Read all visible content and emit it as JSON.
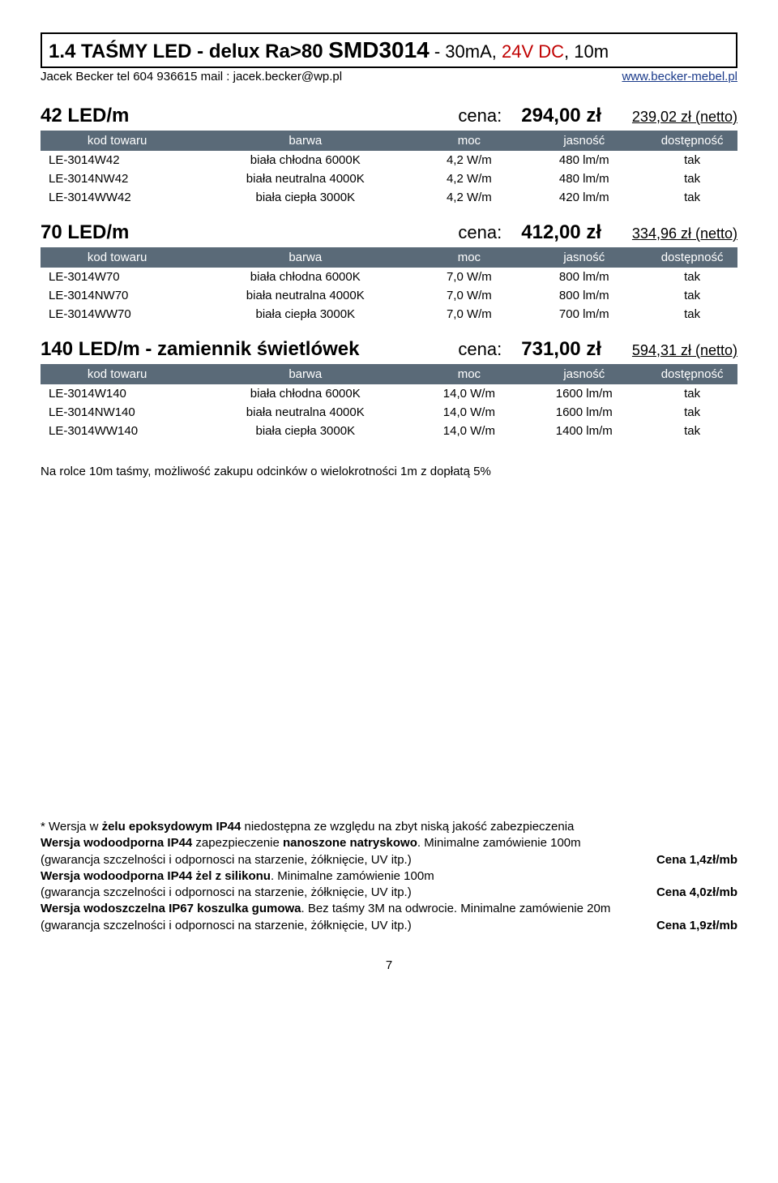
{
  "title": {
    "p1": "1.4 TAŚMY LED - delux Ra>80 ",
    "p2": "SMD3014",
    "p3": " - 30mA, ",
    "p4": "24V DC",
    "p5": ", 10m"
  },
  "contact": {
    "left": "Jacek Becker  tel 604 936615 mail : jacek.becker@wp.pl",
    "right": "www.becker-mebel.pl"
  },
  "columns": [
    "kod towaru",
    "barwa",
    "moc",
    "jasność",
    "dostępność"
  ],
  "sections": [
    {
      "label": "42 LED/m",
      "cena_label": "cena:",
      "price": "294,00 zł",
      "netto": "239,02 zł (netto)",
      "rows": [
        [
          "LE-3014W42",
          "biała chłodna 6000K",
          "4,2 W/m",
          "480 lm/m",
          "tak"
        ],
        [
          "LE-3014NW42",
          "biała neutralna 4000K",
          "4,2 W/m",
          "480 lm/m",
          "tak"
        ],
        [
          "LE-3014WW42",
          "biała ciepła 3000K",
          "4,2 W/m",
          "420 lm/m",
          "tak"
        ]
      ]
    },
    {
      "label": "70 LED/m",
      "cena_label": "cena:",
      "price": "412,00 zł",
      "netto": "334,96 zł (netto)",
      "rows": [
        [
          "LE-3014W70",
          "biała chłodna 6000K",
          "7,0 W/m",
          "800 lm/m",
          "tak"
        ],
        [
          "LE-3014NW70",
          "biała neutralna 4000K",
          "7,0 W/m",
          "800 lm/m",
          "tak"
        ],
        [
          "LE-3014WW70",
          "biała ciepła 3000K",
          "7,0 W/m",
          "700 lm/m",
          "tak"
        ]
      ]
    },
    {
      "label": "140 LED/m - zamiennik świetlówek",
      "cena_label": "cena:",
      "price": "731,00 zł",
      "netto": "594,31 zł (netto)",
      "rows": [
        [
          "LE-3014W140",
          "biała chłodna 6000K",
          "14,0 W/m",
          "1600 lm/m",
          "tak"
        ],
        [
          "LE-3014NW140",
          "biała neutralna 4000K",
          "14,0 W/m",
          "1600 lm/m",
          "tak"
        ],
        [
          "LE-3014WW140",
          "biała ciepła 3000K",
          "14,0 W/m",
          "1400 lm/m",
          "tak"
        ]
      ]
    }
  ],
  "note": "Na rolce 10m taśmy, możliwość zakupu odcinków o wielokrotności 1m z dopłatą 5%",
  "footer": {
    "l1": "* Wersja w <b>żelu epoksydowym IP44</b> niedostępna ze względu na zbyt niską jakość zabezpieczenia",
    "l2a": "<b>Wersja wodoodporna IP44</b> zapezpieczenie <b>nanoszone natryskowo</b>. Minimalne zamówienie 100m",
    "l2b": " (gwarancja szczelności i odpornosci na starzenie, żółknięcie, UV itp.)",
    "l2p": "Cena 1,4zł/mb",
    "l3a": "<b>Wersja wodoodporna IP44 żel z silikonu</b>. Minimalne zamówienie 100m",
    "l3b": " (gwarancja szczelności i odpornosci na starzenie, żółknięcie, UV itp.)",
    "l3p": "Cena 4,0zł/mb",
    "l4a": "<b>Wersja wodoszczelna IP67 koszulka gumowa</b>. Bez taśmy 3M na odwrocie. Minimalne zamówienie 20m",
    "l4b": " (gwarancja szczelności i odpornosci na starzenie, żółknięcie, UV itp.)",
    "l4p": "Cena 1,9zł/mb"
  },
  "page": "7"
}
